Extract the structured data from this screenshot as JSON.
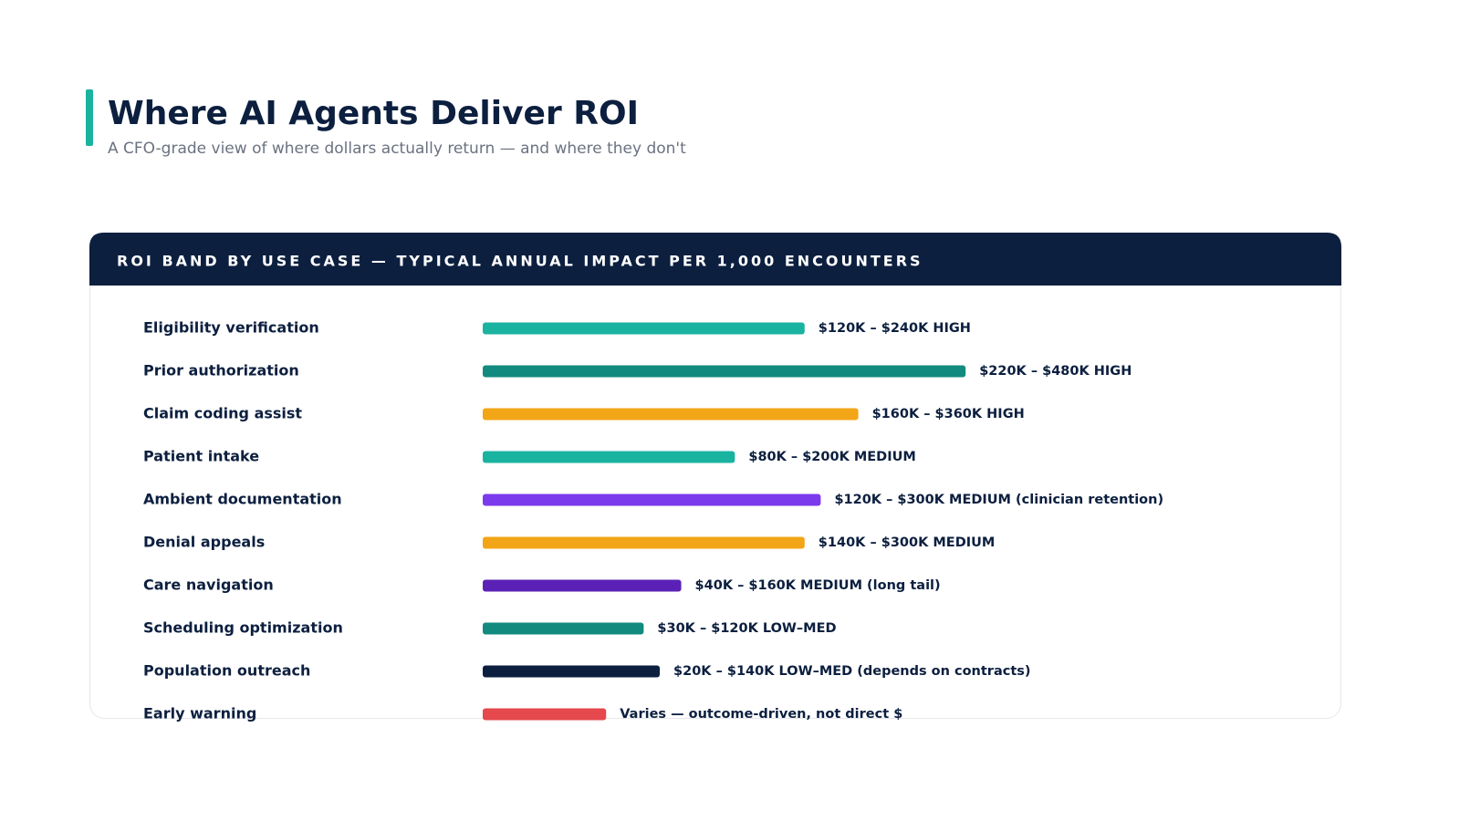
{
  "chart_data": {
    "type": "bar",
    "orientation": "horizontal",
    "title": "Where AI Agents Deliver ROI",
    "subtitle": "A CFO-grade view of where dollars actually return — and where they don't",
    "panel_title": "ROI BAND BY USE CASE — TYPICAL ANNUAL IMPACT PER 1,000 ENCOUNTERS",
    "categories": [
      "Eligibility verification",
      "Prior authorization",
      "Claim coding assist",
      "Patient intake",
      "Ambient documentation",
      "Denial appeals",
      "Care navigation",
      "Scheduling optimization",
      "Population outreach",
      "Early warning"
    ],
    "values": [
      60,
      90,
      70,
      47,
      63,
      60,
      37,
      30,
      33,
      23
    ],
    "bar_labels": [
      "$120K – $240K HIGH",
      "$220K – $480K HIGH",
      "$160K – $360K HIGH",
      "$80K – $200K MEDIUM",
      "$120K – $300K MEDIUM (clinician retention)",
      "$140K – $300K MEDIUM",
      "$40K – $160K MEDIUM (long tail)",
      "$30K – $120K LOW–MED",
      "$20K – $140K LOW–MED (depends on contracts)",
      "Varies — outcome-driven, not direct $"
    ],
    "colors": [
      "#1ab3a0",
      "#138a7e",
      "#f2a516",
      "#1ab3a0",
      "#7c3aed",
      "#f2a516",
      "#5b21b6",
      "#138a7e",
      "#0c1f3f",
      "#e5484d"
    ],
    "xlim": [
      0,
      100
    ]
  }
}
